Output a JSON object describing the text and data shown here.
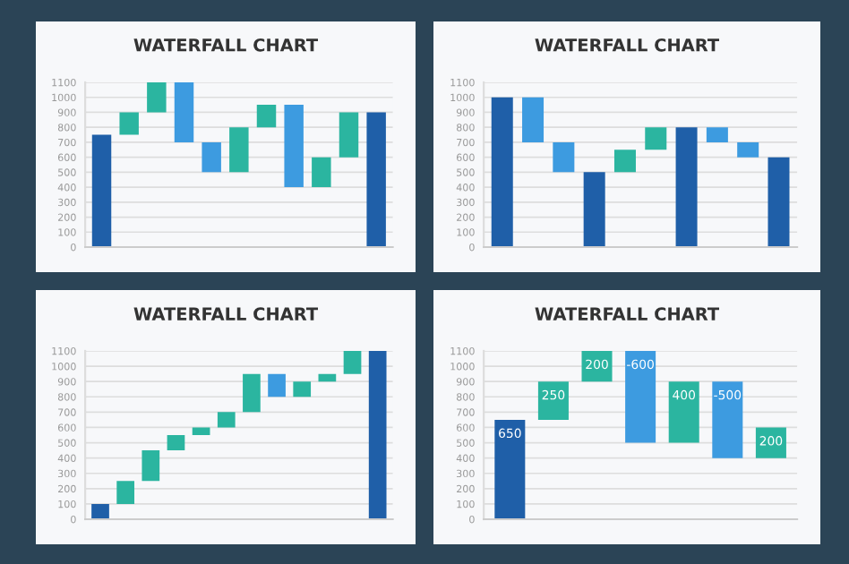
{
  "chart_data": [
    {
      "type": "bar",
      "title": "WATERFALL CHART",
      "categories": [
        null,
        null,
        null,
        null,
        null,
        null,
        null,
        null,
        null,
        null,
        null
      ],
      "base": [
        0,
        750,
        900,
        1100,
        700,
        500,
        800,
        950,
        400,
        600,
        0
      ],
      "values": [
        750,
        150,
        200,
        -400,
        -200,
        300,
        150,
        -550,
        200,
        300,
        900
      ],
      "colors": [
        "#1f5fa8",
        "#2bb5a0",
        "#2bb5a0",
        "#3d9be0",
        "#3d9be0",
        "#2bb5a0",
        "#2bb5a0",
        "#3d9be0",
        "#2bb5a0",
        "#2bb5a0",
        "#1f5fa8"
      ],
      "ylim": [
        0,
        1100
      ],
      "yticks": [
        0,
        100,
        200,
        300,
        400,
        500,
        600,
        700,
        800,
        900,
        1000,
        1100
      ],
      "grid": "y"
    },
    {
      "type": "bar",
      "title": "WATERFALL CHART",
      "categories": [
        null,
        null,
        null,
        null,
        null,
        null,
        null,
        null,
        null,
        null
      ],
      "base": [
        0,
        1000,
        700,
        0,
        500,
        650,
        0,
        800,
        700,
        0
      ],
      "values": [
        1000,
        -300,
        -200,
        500,
        150,
        150,
        800,
        -100,
        -100,
        600
      ],
      "colors": [
        "#1f5fa8",
        "#3d9be0",
        "#3d9be0",
        "#1f5fa8",
        "#2bb5a0",
        "#2bb5a0",
        "#1f5fa8",
        "#3d9be0",
        "#3d9be0",
        "#1f5fa8"
      ],
      "ylim": [
        0,
        1100
      ],
      "yticks": [
        0,
        100,
        200,
        300,
        400,
        500,
        600,
        700,
        800,
        900,
        1000,
        1100
      ],
      "grid": "y"
    },
    {
      "type": "bar",
      "title": "WATERFALL CHART",
      "categories": [
        null,
        null,
        null,
        null,
        null,
        null,
        null,
        null,
        null,
        null,
        null,
        null
      ],
      "base": [
        0,
        100,
        250,
        450,
        550,
        600,
        700,
        950,
        800,
        900,
        950,
        0
      ],
      "values": [
        100,
        150,
        200,
        100,
        50,
        100,
        250,
        -150,
        100,
        50,
        150,
        1100
      ],
      "colors": [
        "#1f5fa8",
        "#2bb5a0",
        "#2bb5a0",
        "#2bb5a0",
        "#2bb5a0",
        "#2bb5a0",
        "#2bb5a0",
        "#3d9be0",
        "#2bb5a0",
        "#2bb5a0",
        "#2bb5a0",
        "#1f5fa8"
      ],
      "ylim": [
        0,
        1100
      ],
      "yticks": [
        0,
        100,
        200,
        300,
        400,
        500,
        600,
        700,
        800,
        900,
        1000,
        1100
      ],
      "grid": "y"
    },
    {
      "type": "bar",
      "title": "WATERFALL CHART",
      "categories": [
        null,
        null,
        null,
        null,
        null,
        null,
        null
      ],
      "base": [
        0,
        650,
        900,
        1100,
        500,
        900,
        400
      ],
      "values": [
        650,
        250,
        200,
        -600,
        400,
        -500,
        200
      ],
      "colors": [
        "#1f5fa8",
        "#2bb5a0",
        "#2bb5a0",
        "#3d9be0",
        "#2bb5a0",
        "#3d9be0",
        "#2bb5a0"
      ],
      "ylim": [
        0,
        1100
      ],
      "yticks": [
        0,
        100,
        200,
        300,
        400,
        500,
        600,
        700,
        800,
        900,
        1000,
        1100
      ],
      "grid": "y",
      "data_labels": true
    }
  ]
}
